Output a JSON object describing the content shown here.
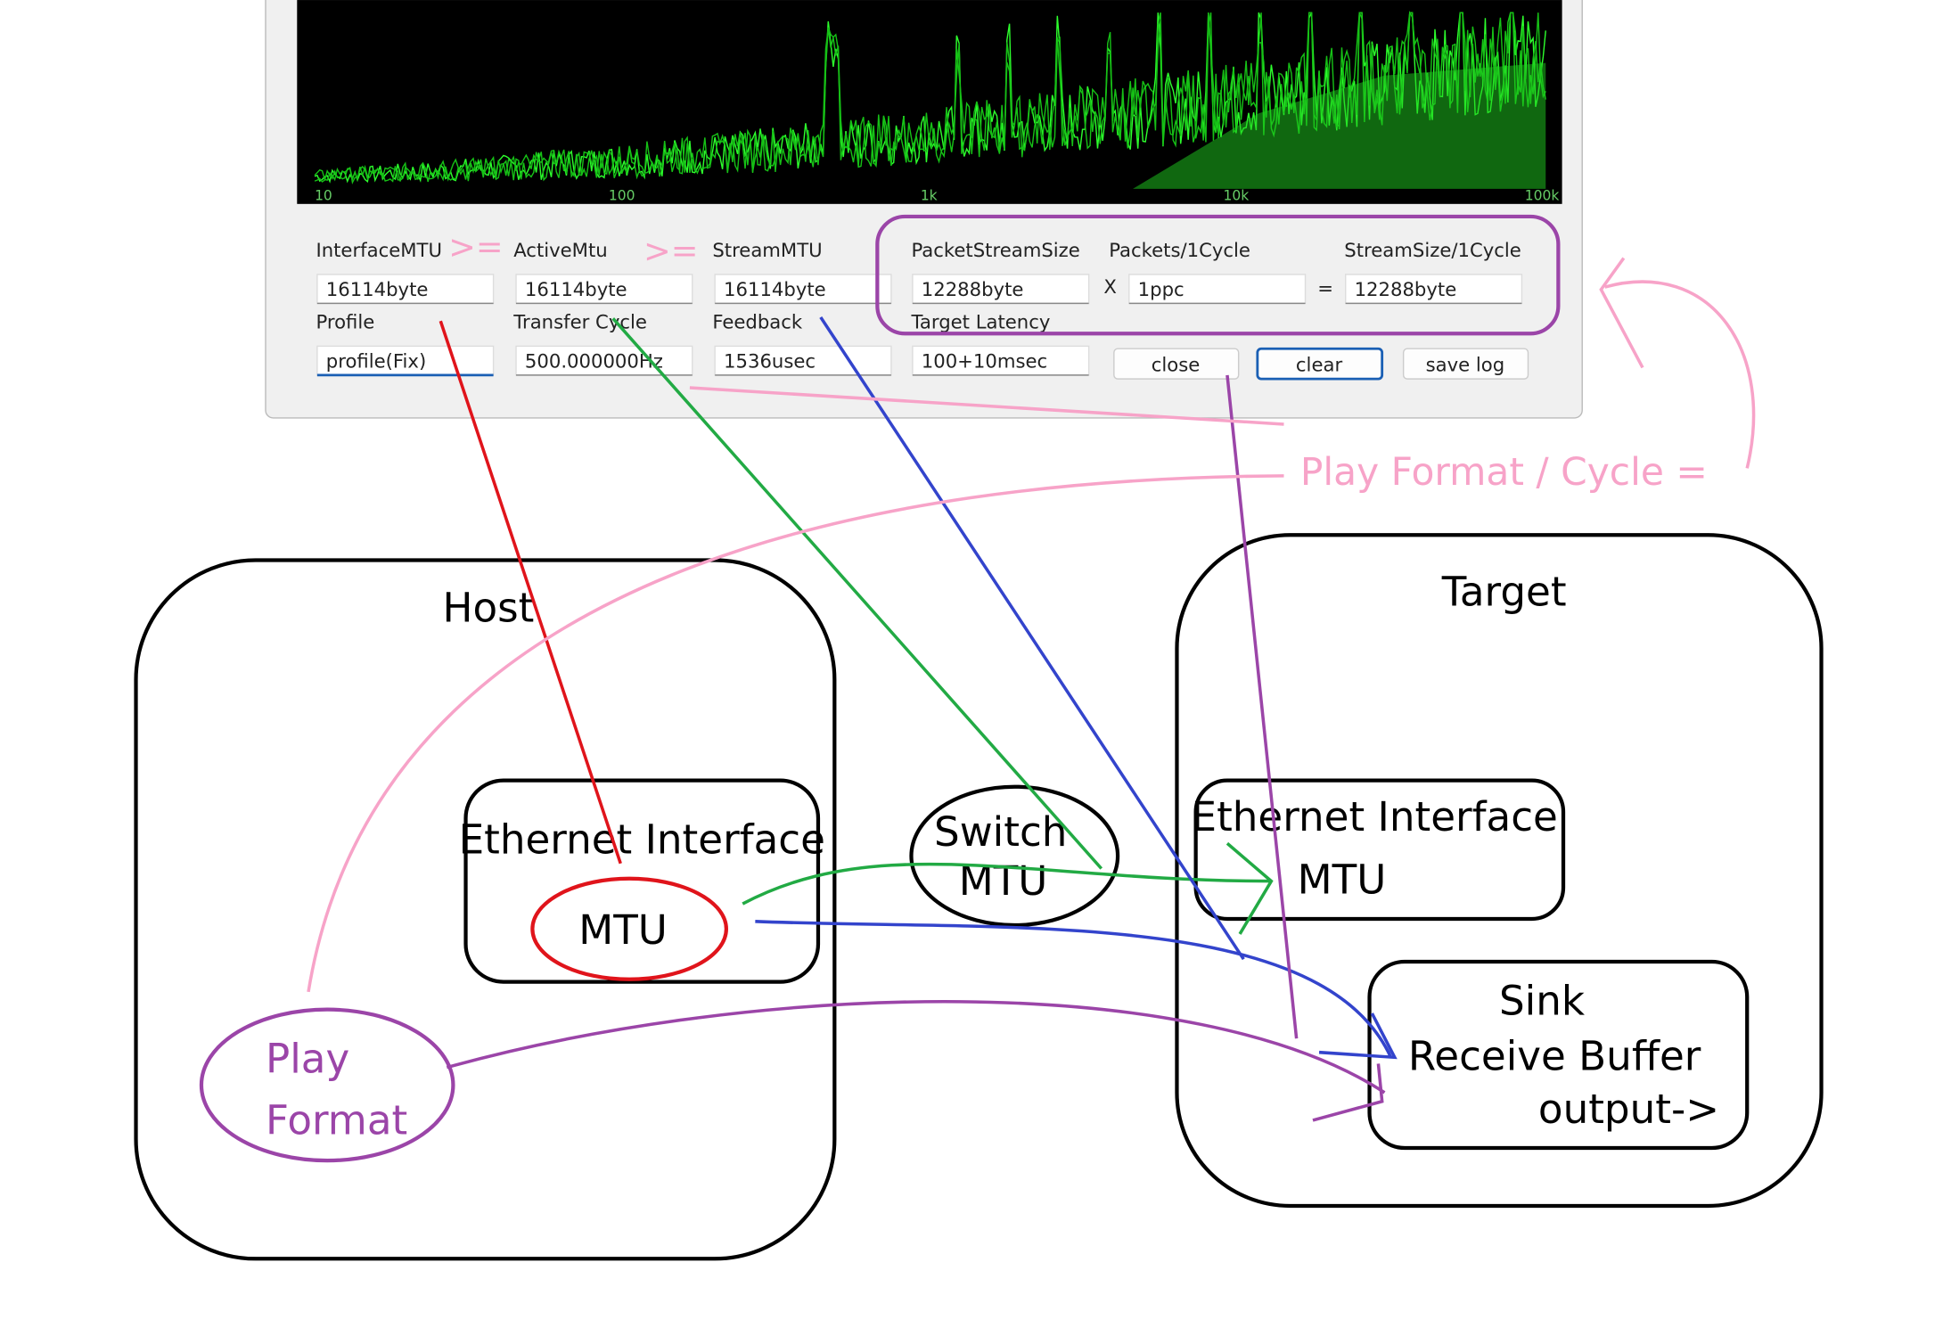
{
  "spectrum": {
    "axis_labels": [
      "10",
      "100",
      "1k",
      "10k",
      "100k"
    ]
  },
  "fields": [
    {
      "label": "InterfaceMTU",
      "value": "16114byte"
    },
    {
      "label": "ActiveMtu",
      "value": "16114byte"
    },
    {
      "label": "StreamMTU",
      "value": "16114byte"
    },
    {
      "label": "PacketStreamSize",
      "value": "12288byte"
    },
    {
      "label": "Packets/1Cycle",
      "value": "1ppc"
    },
    {
      "label": "StreamSize/1Cycle",
      "value": "12288byte"
    },
    {
      "label": "Profile",
      "value": "profile(Fix)"
    },
    {
      "label": "Transfer Cycle",
      "value": "500.000000Hz"
    },
    {
      "label": "Feedback",
      "value": "1536usec"
    },
    {
      "label": "Target Latency",
      "value": "100+10msec"
    }
  ],
  "operators": [
    ">=",
    ">=",
    "X",
    "="
  ],
  "buttons": [
    "close",
    "clear",
    "save log"
  ],
  "annotation": "Play Format / Cycle =",
  "diagram": {
    "host": "Host",
    "target": "Target",
    "host_interface": "Ethernet Interface",
    "host_mtu": "MTU",
    "switch": [
      "Switch",
      "MTU"
    ],
    "target_interface": "Ethernet Interface",
    "target_mtu": "MTU",
    "sink": [
      "Sink",
      "Receive Buffer",
      "output->"
    ],
    "play_format": [
      "Play",
      "Format"
    ]
  }
}
